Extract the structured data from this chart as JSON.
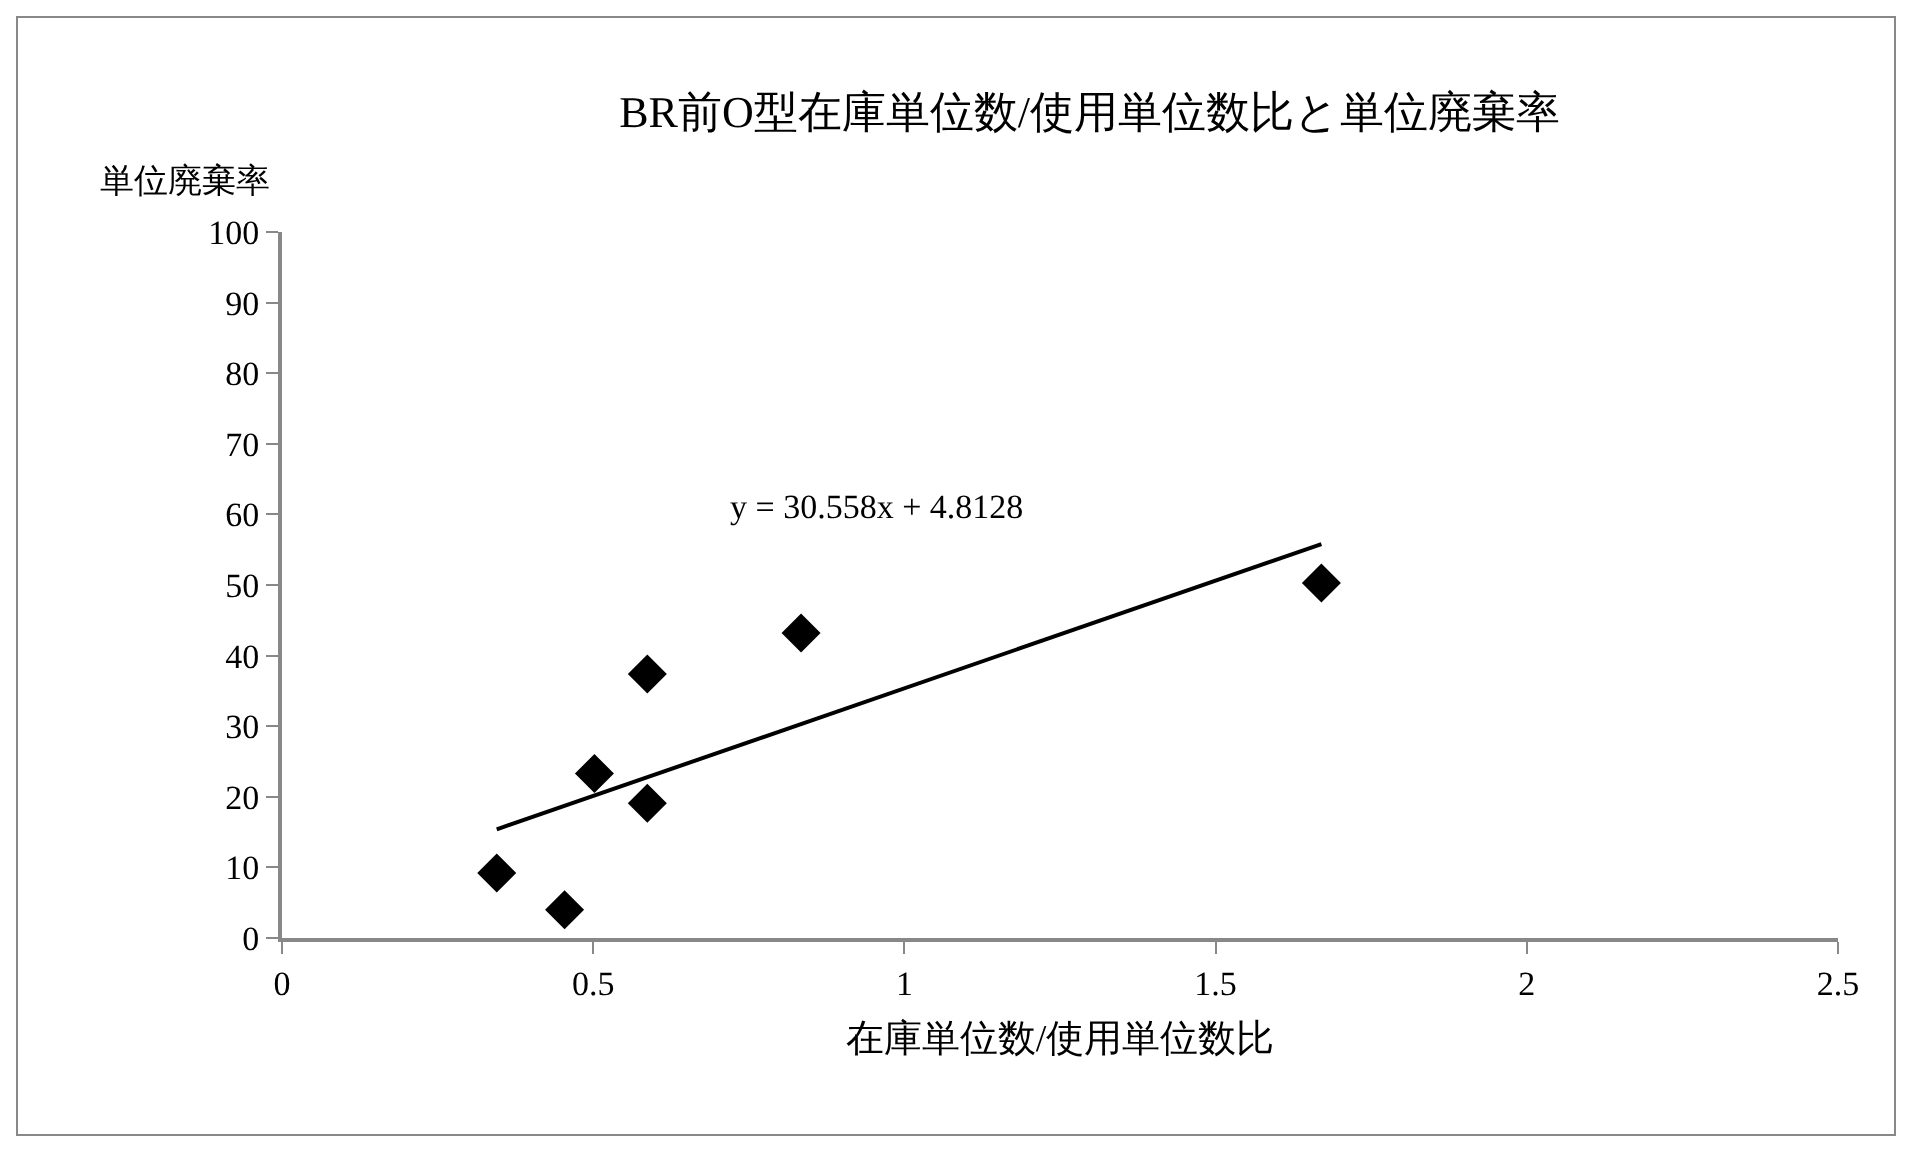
{
  "chart_data": {
    "type": "scatter",
    "title": "BR前O型在庫単位数/使用単位数比と単位廃棄率",
    "xlabel": "在庫単位数/使用単位数比",
    "ylabel": "単位廃棄率",
    "x": [
      0.345,
      0.454,
      0.502,
      0.587,
      0.587,
      0.834,
      1.67
    ],
    "series": [
      {
        "color": "#000000",
        "marker": "diamond",
        "values": [
          9.2,
          4.0,
          23.3,
          37.4,
          19.1,
          43.2,
          50.3
        ]
      },
      {
        "type": "line",
        "color": "#000000",
        "x": [
          0.345,
          1.67
        ],
        "values": [
          15.4,
          55.8
        ]
      }
    ],
    "annotations": [
      "y = 30.558x + 4.8128"
    ],
    "xlim": [
      0,
      2.5
    ],
    "xticks": [
      0,
      0.5,
      1,
      1.5,
      2,
      2.5
    ],
    "ylim": [
      0,
      100
    ],
    "yticks": [
      0,
      10,
      20,
      30,
      40,
      50,
      60,
      70,
      80,
      90,
      100
    ],
    "grid": false,
    "legend": false
  }
}
